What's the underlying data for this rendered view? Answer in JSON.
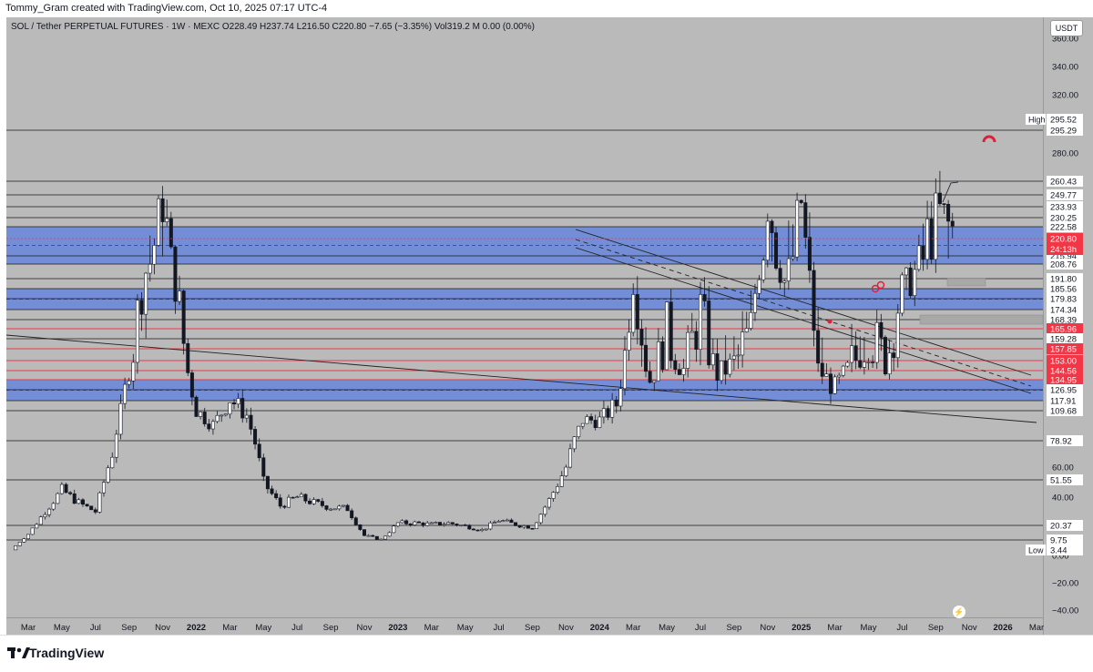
{
  "header": {
    "credit": "Tommy_Gram created with TradingView.com, Oct 10, 2025 07:17 UTC-4"
  },
  "legend": {
    "symbol": "SOL / Tether PERPETUAL FUTURES · 1W · MEXC",
    "ohlc": "O228.49 H237.74 L216.50 C220.80 −7.65 (−3.35%) Vol319.2 M 0.00 (0.00%)"
  },
  "currency_badge": "USDT",
  "footer": {
    "brand": "TradingView"
  },
  "colors": {
    "plot_bg": "#bababa",
    "band": "#5b7fe0",
    "red_line": "#f23645",
    "candle_up": "#ffffff",
    "candle_down": "#131722"
  },
  "chart_data": {
    "type": "candlestick",
    "symbol": "SOL / Tether PERPETUAL FUTURES",
    "interval": "1W",
    "exchange": "MEXC",
    "ohlc": {
      "open": 228.49,
      "high": 237.74,
      "low": 216.5,
      "close": 220.8,
      "change": -7.65,
      "change_pct": -3.35
    },
    "y_axis": {
      "ticks": [
        "360.00",
        "340.00",
        "320.00",
        "280.00",
        "60.00",
        "40.00",
        "0.00",
        "−20.00",
        "−40.00"
      ],
      "range": [
        -47,
        363
      ]
    },
    "x_axis": {
      "labels": [
        "Mar",
        "May",
        "Jul",
        "Sep",
        "Nov",
        "2022",
        "Mar",
        "May",
        "Jul",
        "Sep",
        "Nov",
        "2023",
        "Mar",
        "May",
        "Jul",
        "Sep",
        "Nov",
        "2024",
        "Mar",
        "May",
        "Jul",
        "Sep",
        "Nov",
        "2025",
        "Mar",
        "May",
        "Jul",
        "Sep",
        "Nov",
        "2026",
        "Mar"
      ]
    },
    "price_levels": [
      {
        "label": "295.29",
        "value": 295.29,
        "style": "black"
      },
      {
        "label": "260.43",
        "value": 260.43,
        "style": "black"
      },
      {
        "label": "249.77",
        "value": 249.77,
        "style": "black"
      },
      {
        "label": "233.93",
        "value": 233.93,
        "style": "black"
      },
      {
        "label": "230.25",
        "value": 230.25,
        "style": "black"
      },
      {
        "label": "222.58",
        "value": 222.58,
        "style": "black"
      },
      {
        "label": "215.94",
        "value": 215.94,
        "style": "black"
      },
      {
        "label": "208.76",
        "value": 208.76,
        "style": "black"
      },
      {
        "label": "191.80",
        "value": 191.8,
        "style": "black"
      },
      {
        "label": "185.56",
        "value": 185.56,
        "style": "black"
      },
      {
        "label": "179.83",
        "value": 179.83,
        "style": "black"
      },
      {
        "label": "174.34",
        "value": 174.34,
        "style": "black"
      },
      {
        "label": "168.39",
        "value": 168.39,
        "style": "black"
      },
      {
        "label": "165.96",
        "value": 165.96,
        "style": "red"
      },
      {
        "label": "159.28",
        "value": 159.28,
        "style": "black"
      },
      {
        "label": "157.85",
        "value": 157.85,
        "style": "red"
      },
      {
        "label": "153.00",
        "value": 153.0,
        "style": "red"
      },
      {
        "label": "144.56",
        "value": 144.56,
        "style": "red"
      },
      {
        "label": "134.95",
        "value": 134.95,
        "style": "red"
      },
      {
        "label": "126.95",
        "value": 126.95,
        "style": "black"
      },
      {
        "label": "117.91",
        "value": 117.91,
        "style": "black"
      },
      {
        "label": "109.68",
        "value": 109.68,
        "style": "black"
      },
      {
        "label": "78.92",
        "value": 78.92,
        "style": "black"
      },
      {
        "label": "51.55",
        "value": 51.55,
        "style": "black"
      },
      {
        "label": "20.37",
        "value": 20.37,
        "style": "black"
      },
      {
        "label": "9.75",
        "value": 9.75,
        "style": "black"
      }
    ],
    "current_price": {
      "label": "220.80",
      "countdown": "24:13h",
      "value": 220.8
    },
    "high": {
      "tag": "High",
      "label": "295.52",
      "value": 295.52
    },
    "low": {
      "tag": "Low",
      "label": "3.44",
      "value": 3.44
    },
    "zones": [
      {
        "from": 208.76,
        "to": 222.58
      },
      {
        "from": 174.34,
        "to": 185.56
      },
      {
        "from": 117.91,
        "to": 134.95
      }
    ],
    "close_path": [
      {
        "t": "2021-02",
        "c": 3.5
      },
      {
        "t": "2021-03",
        "c": 14
      },
      {
        "t": "2021-04",
        "c": 30
      },
      {
        "t": "2021-05",
        "c": 45
      },
      {
        "t": "2021-06",
        "c": 36
      },
      {
        "t": "2021-07",
        "c": 30
      },
      {
        "t": "2021-08",
        "c": 70
      },
      {
        "t": "2021-09",
        "c": 145
      },
      {
        "t": "2021-10",
        "c": 200
      },
      {
        "t": "2021-11",
        "c": 240
      },
      {
        "t": "2021-12",
        "c": 175
      },
      {
        "t": "2022-01",
        "c": 110
      },
      {
        "t": "2022-02",
        "c": 95
      },
      {
        "t": "2022-03",
        "c": 120
      },
      {
        "t": "2022-04",
        "c": 105
      },
      {
        "t": "2022-05",
        "c": 50
      },
      {
        "t": "2022-06",
        "c": 34
      },
      {
        "t": "2022-07",
        "c": 40
      },
      {
        "t": "2022-08",
        "c": 36
      },
      {
        "t": "2022-09",
        "c": 33
      },
      {
        "t": "2022-10",
        "c": 32
      },
      {
        "t": "2022-11",
        "c": 13
      },
      {
        "t": "2022-12",
        "c": 10
      },
      {
        "t": "2023-01",
        "c": 22
      },
      {
        "t": "2023-02",
        "c": 22
      },
      {
        "t": "2023-03",
        "c": 21
      },
      {
        "t": "2023-04",
        "c": 22
      },
      {
        "t": "2023-05",
        "c": 20
      },
      {
        "t": "2023-06",
        "c": 17
      },
      {
        "t": "2023-07",
        "c": 24
      },
      {
        "t": "2023-08",
        "c": 21
      },
      {
        "t": "2023-09",
        "c": 19
      },
      {
        "t": "2023-10",
        "c": 38
      },
      {
        "t": "2023-11",
        "c": 60
      },
      {
        "t": "2023-12",
        "c": 100
      },
      {
        "t": "2024-01",
        "c": 100
      },
      {
        "t": "2024-02",
        "c": 115
      },
      {
        "t": "2024-03",
        "c": 195
      },
      {
        "t": "2024-04",
        "c": 135
      },
      {
        "t": "2024-05",
        "c": 165
      },
      {
        "t": "2024-06",
        "c": 145
      },
      {
        "t": "2024-07",
        "c": 175
      },
      {
        "t": "2024-08",
        "c": 140
      },
      {
        "t": "2024-09",
        "c": 150
      },
      {
        "t": "2024-10",
        "c": 165
      },
      {
        "t": "2024-11",
        "c": 240
      },
      {
        "t": "2024-12",
        "c": 190
      },
      {
        "t": "2025-01",
        "c": 240
      },
      {
        "t": "2025-02",
        "c": 145
      },
      {
        "t": "2025-03",
        "c": 128
      },
      {
        "t": "2025-04",
        "c": 150
      },
      {
        "t": "2025-05",
        "c": 165
      },
      {
        "t": "2025-06",
        "c": 150
      },
      {
        "t": "2025-07",
        "c": 185
      },
      {
        "t": "2025-08",
        "c": 205
      },
      {
        "t": "2025-09",
        "c": 235
      },
      {
        "t": "2025-10",
        "c": 220.8
      }
    ]
  }
}
